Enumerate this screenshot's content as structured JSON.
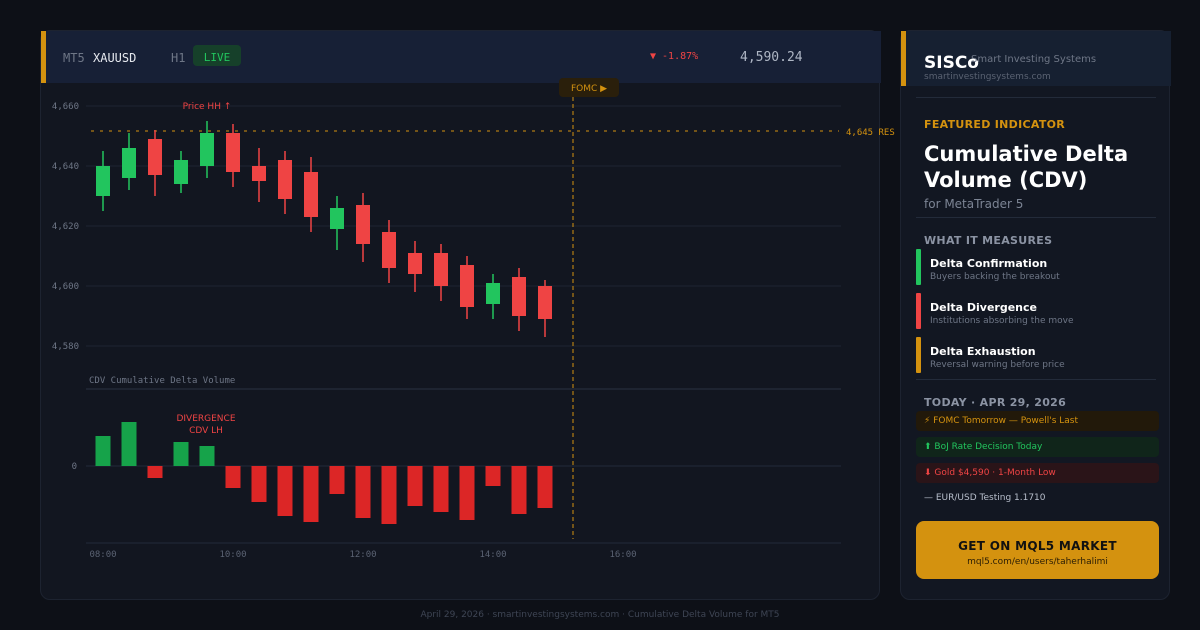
{
  "header": {
    "platform": "MT5",
    "symbol": "XAUUSD",
    "timeframe": "H1",
    "live_badge": "LIVE",
    "change": "▼ -1.87%",
    "price": "4,590.24"
  },
  "chart": {
    "event_marker": "FOMC ▶",
    "resistance_label": "4,645 RES",
    "price_annotation": "Price HH ↑",
    "cdv_pane_label": "CDV  Cumulative Delta Volume",
    "divergence_line1": "DIVERGENCE",
    "divergence_line2": "CDV LH",
    "colors": {
      "bull": "#22c55e",
      "bear": "#ef4444",
      "accent": "#d4920f"
    }
  },
  "chart_data": {
    "type": "candlestick",
    "title": "",
    "price_axis": {
      "ticks": [
        "4,660",
        "4,640",
        "4,620",
        "4,600",
        "4,580"
      ],
      "ylim": [
        4574,
        4669
      ]
    },
    "x_ticks": [
      "08:00",
      "10:00",
      "12:00",
      "14:00",
      "16:00"
    ],
    "resistance": 4645,
    "candles": [
      {
        "o": 4630,
        "h": 4645,
        "l": 4625,
        "c": 4640
      },
      {
        "o": 4636,
        "h": 4651,
        "l": 4632,
        "c": 4646
      },
      {
        "o": 4649,
        "h": 4652,
        "l": 4630,
        "c": 4637
      },
      {
        "o": 4634,
        "h": 4645,
        "l": 4631,
        "c": 4642
      },
      {
        "o": 4640,
        "h": 4655,
        "l": 4636,
        "c": 4651
      },
      {
        "o": 4651,
        "h": 4654,
        "l": 4633,
        "c": 4638
      },
      {
        "o": 4640,
        "h": 4646,
        "l": 4628,
        "c": 4635
      },
      {
        "o": 4642,
        "h": 4645,
        "l": 4624,
        "c": 4629
      },
      {
        "o": 4638,
        "h": 4643,
        "l": 4618,
        "c": 4623
      },
      {
        "o": 4619,
        "h": 4630,
        "l": 4612,
        "c": 4626
      },
      {
        "o": 4627,
        "h": 4631,
        "l": 4608,
        "c": 4614
      },
      {
        "o": 4618,
        "h": 4622,
        "l": 4601,
        "c": 4606
      },
      {
        "o": 4611,
        "h": 4615,
        "l": 4598,
        "c": 4604
      },
      {
        "o": 4611,
        "h": 4614,
        "l": 4595,
        "c": 4600
      },
      {
        "o": 4607,
        "h": 4610,
        "l": 4589,
        "c": 4593
      },
      {
        "o": 4594,
        "h": 4604,
        "l": 4589,
        "c": 4601
      },
      {
        "o": 4603,
        "h": 4606,
        "l": 4585,
        "c": 4590
      },
      {
        "o": 4600,
        "h": 4602,
        "l": 4583,
        "c": 4589
      }
    ],
    "cdv": {
      "label": "CDV",
      "zero_tick": "0",
      "values": [
        30,
        44,
        -12,
        24,
        20,
        -22,
        -36,
        -50,
        -56,
        -28,
        -52,
        -58,
        -40,
        -46,
        -54,
        -20,
        -48,
        -42
      ]
    },
    "event_time": "FOMC"
  },
  "sidebar": {
    "brand": "SISCo",
    "tagline": "Smart Investing Systems",
    "url": "smartinvestingsystems.com",
    "featured_label": "FEATURED INDICATOR",
    "indicator_title": "Cumulative Delta Volume (CDV)",
    "platform_sub": "for MetaTrader 5",
    "measures_label": "WHAT IT MEASURES",
    "measures": [
      {
        "title": "Delta Confirmation",
        "desc": "Buyers backing the breakout",
        "color": "#22c55e"
      },
      {
        "title": "Delta Divergence",
        "desc": "Institutions absorbing the move",
        "color": "#ef4444"
      },
      {
        "title": "Delta Exhaustion",
        "desc": "Reversal warning before price",
        "color": "#d4920f"
      }
    ],
    "today_label": "TODAY · APR 29, 2026",
    "events": [
      {
        "text": "⚡ FOMC Tomorrow — Powell's Last",
        "color": "#d4920f",
        "bg": "#22190a"
      },
      {
        "text": "⬆  BoJ Rate Decision Today",
        "color": "#22c55e",
        "bg": "#10251a"
      },
      {
        "text": "⬇  Gold $4,590 · 1-Month Low",
        "color": "#ef4444",
        "bg": "#2a1418"
      },
      {
        "text": "—  EUR/USD Testing 1.1710",
        "color": "#b8bfcc",
        "bg": "transparent"
      }
    ],
    "cta_title": "GET ON MQL5 MARKET",
    "cta_url": "mql5.com/en/users/taherhalimi"
  },
  "footer": "April 29, 2026  ·  smartinvestingsystems.com  ·  Cumulative Delta Volume for MT5"
}
